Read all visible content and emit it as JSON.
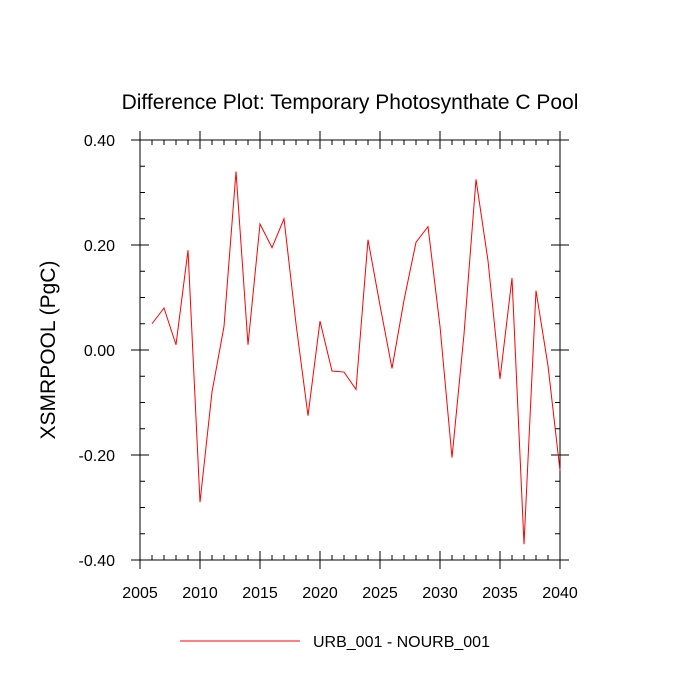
{
  "chart_data": {
    "type": "line",
    "title": "Difference Plot: Temporary Photosynthate C Pool",
    "xlabel": "",
    "ylabel": "XSMRPOOL  (PgC)",
    "xlim": [
      2005,
      2040
    ],
    "ylim": [
      -0.4,
      0.4
    ],
    "x_ticks": [
      2005,
      2010,
      2015,
      2020,
      2025,
      2030,
      2035,
      2040
    ],
    "x_tick_labels": [
      "2005",
      "2010",
      "2015",
      "2020",
      "2025",
      "2030",
      "2035",
      "2040"
    ],
    "y_ticks": [
      -0.4,
      -0.2,
      0.0,
      0.2,
      0.4
    ],
    "y_tick_labels": [
      "-0.40",
      "-0.20",
      "0.00",
      "0.20",
      "0.40"
    ],
    "grid": false,
    "legend_position": "bottom-center",
    "series": [
      {
        "name": "URB_001 - NOURB_001",
        "color": "#ff0000",
        "x": [
          2006,
          2007,
          2008,
          2009,
          2010,
          2011,
          2012,
          2013,
          2014,
          2015,
          2016,
          2017,
          2018,
          2019,
          2020,
          2021,
          2022,
          2023,
          2024,
          2025,
          2026,
          2027,
          2028,
          2029,
          2030,
          2031,
          2032,
          2033,
          2034,
          2035,
          2036,
          2037,
          2038,
          2039,
          2040
        ],
        "values": [
          0.05,
          0.08,
          0.01,
          0.19,
          -0.29,
          -0.08,
          0.045,
          0.34,
          0.01,
          0.24,
          0.195,
          0.25,
          0.05,
          -0.125,
          0.055,
          -0.04,
          -0.042,
          -0.075,
          0.21,
          0.085,
          -0.035,
          0.095,
          0.205,
          0.235,
          0.045,
          -0.205,
          0.03,
          0.325,
          0.17,
          -0.055,
          0.137,
          -0.37,
          0.113,
          -0.03,
          -0.23
        ]
      }
    ]
  }
}
